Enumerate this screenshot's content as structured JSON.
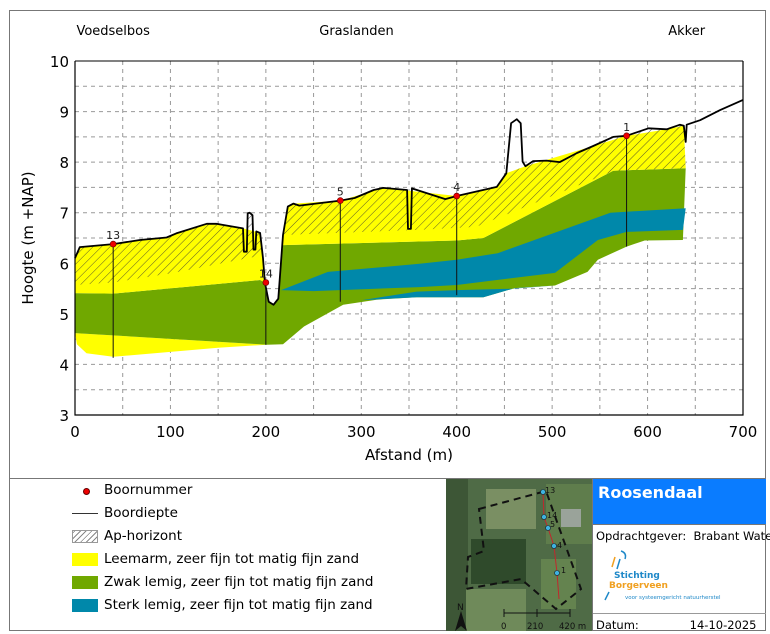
{
  "chart_data": {
    "type": "area",
    "xlabel": "Afstand (m)",
    "ylabel": "Hoogte (m +NAP)",
    "xlim": [
      0,
      700
    ],
    "ylim": [
      3,
      10
    ],
    "xticks": [
      "0",
      "100",
      "200",
      "300",
      "400",
      "500",
      "600",
      "700"
    ],
    "yticks": [
      "3",
      "4",
      "5",
      "6",
      "7",
      "8",
      "9",
      "10"
    ],
    "grid": true,
    "zones": [
      {
        "label": "Voedselbos",
        "x": 40
      },
      {
        "label": "Graslanden",
        "x": 295
      },
      {
        "label": "Akker",
        "x": 641
      }
    ],
    "surface": [
      [
        0,
        6.1
      ],
      [
        5,
        6.32
      ],
      [
        40,
        6.38
      ],
      [
        68,
        6.46
      ],
      [
        96,
        6.51
      ],
      [
        106,
        6.59
      ],
      [
        138,
        6.78
      ],
      [
        148,
        6.78
      ],
      [
        176,
        6.69
      ],
      [
        177,
        6.23
      ],
      [
        180,
        6.23
      ],
      [
        181,
        6.99
      ],
      [
        183,
        7.0
      ],
      [
        186,
        6.95
      ],
      [
        187,
        6.27
      ],
      [
        189,
        6.27
      ],
      [
        190,
        6.63
      ],
      [
        194,
        6.6
      ],
      [
        197,
        6.1
      ],
      [
        199,
        5.62
      ],
      [
        203,
        5.24
      ],
      [
        208,
        5.18
      ],
      [
        213,
        5.3
      ],
      [
        218,
        6.56
      ],
      [
        223,
        7.12
      ],
      [
        229,
        7.18
      ],
      [
        235,
        7.14
      ],
      [
        278,
        7.24
      ],
      [
        293,
        7.29
      ],
      [
        313,
        7.45
      ],
      [
        323,
        7.49
      ],
      [
        348,
        7.45
      ],
      [
        349,
        6.68
      ],
      [
        352,
        6.68
      ],
      [
        353,
        7.48
      ],
      [
        388,
        7.27
      ],
      [
        400,
        7.33
      ],
      [
        442,
        7.51
      ],
      [
        452,
        7.78
      ],
      [
        457,
        8.77
      ],
      [
        463,
        8.85
      ],
      [
        467,
        8.77
      ],
      [
        469,
        8.01
      ],
      [
        472,
        7.92
      ],
      [
        480,
        8.02
      ],
      [
        494,
        8.03
      ],
      [
        508,
        8.0
      ],
      [
        526,
        8.18
      ],
      [
        543,
        8.32
      ],
      [
        564,
        8.5
      ],
      [
        578,
        8.52
      ],
      [
        601,
        8.67
      ],
      [
        620,
        8.65
      ],
      [
        634,
        8.74
      ],
      [
        638,
        8.72
      ],
      [
        640,
        8.4
      ],
      [
        641,
        8.74
      ],
      [
        655,
        8.83
      ],
      [
        676,
        9.03
      ],
      [
        700,
        9.23
      ]
    ],
    "layers": [
      {
        "name": "Leemarm, zeer fijn tot matig fijn zand",
        "color": "#ffff00",
        "polygon": [
          [
            0,
            4.62
          ],
          [
            201,
            4.39
          ],
          [
            150,
            4.33
          ],
          [
            40,
            4.15
          ],
          [
            12,
            4.22
          ],
          [
            2,
            4.4
          ]
        ]
      },
      {
        "name": "Zwak lemig, zeer fijn tot matig fijn zand",
        "color": "#70a800",
        "polygon": [
          [
            0,
            5.41
          ],
          [
            40,
            5.4
          ],
          [
            194,
            5.67
          ],
          [
            199,
            5.62
          ],
          [
            203,
            5.24
          ],
          [
            208,
            5.18
          ],
          [
            213,
            5.3
          ],
          [
            218,
            6.36
          ],
          [
            360,
            6.43
          ],
          [
            400,
            6.45
          ],
          [
            428,
            6.5
          ],
          [
            564,
            7.83
          ],
          [
            640,
            7.88
          ],
          [
            637,
            6.46
          ],
          [
            597,
            6.45
          ],
          [
            578,
            6.33
          ],
          [
            548,
            6.07
          ],
          [
            537,
            5.83
          ],
          [
            503,
            5.56
          ],
          [
            461,
            5.51
          ],
          [
            428,
            5.33
          ],
          [
            358,
            5.33
          ],
          [
            316,
            5.28
          ],
          [
            281,
            5.18
          ],
          [
            240,
            4.75
          ],
          [
            218,
            4.4
          ],
          [
            201,
            4.39
          ],
          [
            0,
            4.62
          ]
        ]
      },
      {
        "name": "Sterk lemig, zeer fijn tot matig fijn zand",
        "color": "#0088aa",
        "polygon": [
          [
            216,
            5.47
          ],
          [
            265,
            5.83
          ],
          [
            361,
            5.99
          ],
          [
            400,
            6.07
          ],
          [
            443,
            6.2
          ],
          [
            561,
            7.0
          ],
          [
            640,
            7.09
          ],
          [
            637,
            6.66
          ],
          [
            578,
            6.62
          ],
          [
            548,
            6.46
          ],
          [
            503,
            5.81
          ],
          [
            400,
            5.57
          ],
          [
            361,
            5.53
          ],
          [
            250,
            5.45
          ]
        ]
      },
      {
        "name": "Sterk lemig, zeer fijn tot matig fijn zand",
        "color": "#0088aa",
        "polygon": [
          [
            300,
            5.27
          ],
          [
            358,
            5.44
          ],
          [
            400,
            5.47
          ],
          [
            460,
            5.5
          ],
          [
            503,
            5.56
          ],
          [
            461,
            5.51
          ],
          [
            428,
            5.33
          ],
          [
            358,
            5.33
          ]
        ]
      },
      {
        "name": "Leemarm, zeer fijn tot matig fijn zand",
        "color": "#ffff00",
        "polygon": [
          [
            0,
            6.1
          ],
          [
            5,
            6.32
          ],
          [
            40,
            6.38
          ],
          [
            68,
            6.46
          ],
          [
            96,
            6.51
          ],
          [
            106,
            6.59
          ],
          [
            138,
            6.78
          ],
          [
            148,
            6.78
          ],
          [
            176,
            6.69
          ],
          [
            194,
            6.6
          ],
          [
            197,
            6.1
          ],
          [
            199,
            5.62
          ],
          [
            194,
            5.67
          ],
          [
            40,
            5.4
          ],
          [
            0,
            5.41
          ]
        ]
      },
      {
        "name": "Leemarm, zeer fijn tot matig fijn zand",
        "color": "#ffff00",
        "polygon": [
          [
            218,
            6.56
          ],
          [
            223,
            7.12
          ],
          [
            229,
            7.18
          ],
          [
            278,
            7.24
          ],
          [
            323,
            7.49
          ],
          [
            400,
            7.33
          ],
          [
            442,
            7.51
          ],
          [
            452,
            7.78
          ],
          [
            472,
            7.92
          ],
          [
            543,
            8.32
          ],
          [
            578,
            8.52
          ],
          [
            620,
            8.65
          ],
          [
            638,
            8.72
          ],
          [
            640,
            7.88
          ],
          [
            564,
            7.83
          ],
          [
            428,
            6.5
          ],
          [
            400,
            6.45
          ],
          [
            360,
            6.43
          ],
          [
            218,
            6.36
          ]
        ]
      }
    ],
    "ap_horizon": [
      [
        [
          0,
          6.1
        ],
        [
          5,
          6.32
        ],
        [
          40,
          6.38
        ],
        [
          68,
          6.46
        ],
        [
          96,
          6.51
        ],
        [
          106,
          6.59
        ],
        [
          138,
          6.78
        ],
        [
          148,
          6.78
        ],
        [
          176,
          6.69
        ],
        [
          177,
          6.23
        ],
        [
          180,
          6.23
        ],
        [
          181,
          6.99
        ],
        [
          183,
          7.0
        ],
        [
          186,
          6.95
        ],
        [
          187,
          6.27
        ],
        [
          189,
          6.27
        ],
        [
          190,
          6.63
        ],
        [
          194,
          6.6
        ],
        [
          197,
          6.16
        ],
        [
          100,
          5.8
        ],
        [
          40,
          5.62
        ],
        [
          0,
          5.57
        ]
      ],
      [
        [
          218,
          6.56
        ],
        [
          223,
          7.12
        ],
        [
          229,
          7.18
        ],
        [
          235,
          7.14
        ],
        [
          278,
          7.24
        ],
        [
          293,
          7.29
        ],
        [
          313,
          7.45
        ],
        [
          323,
          7.49
        ],
        [
          348,
          7.45
        ],
        [
          349,
          6.68
        ],
        [
          352,
          6.68
        ],
        [
          353,
          7.48
        ],
        [
          388,
          7.27
        ],
        [
          400,
          7.33
        ],
        [
          442,
          7.51
        ],
        [
          452,
          7.78
        ],
        [
          472,
          7.92
        ],
        [
          480,
          8.02
        ],
        [
          494,
          8.03
        ],
        [
          508,
          8.0
        ],
        [
          526,
          8.18
        ],
        [
          543,
          8.32
        ],
        [
          564,
          8.5
        ],
        [
          578,
          8.52
        ],
        [
          601,
          8.67
        ],
        [
          620,
          8.65
        ],
        [
          634,
          8.74
        ],
        [
          638,
          8.72
        ],
        [
          640,
          7.88
        ],
        [
          565,
          7.83
        ],
        [
          420,
          6.72
        ],
        [
          360,
          6.66
        ]
      ]
    ],
    "boreholes": [
      {
        "id": "13",
        "x": 40,
        "top": 6.38,
        "bottom": 4.13
      },
      {
        "id": "14",
        "x": 200,
        "top": 5.62,
        "bottom": 4.39
      },
      {
        "id": "5",
        "x": 278,
        "top": 7.24,
        "bottom": 5.24
      },
      {
        "id": "4",
        "x": 400,
        "top": 7.33,
        "bottom": 5.37
      },
      {
        "id": "1",
        "x": 578,
        "top": 8.52,
        "bottom": 6.33
      }
    ]
  },
  "legend": {
    "items": [
      {
        "label": "Boornummer",
        "symbol": "red-dot"
      },
      {
        "label": "Boordiepte",
        "symbol": "line"
      },
      {
        "label": "Ap-horizont",
        "symbol": "hatch"
      },
      {
        "label": "Leemarm, zeer fijn tot matig fijn zand",
        "symbol": "fill",
        "color": "#ffff00"
      },
      {
        "label": "Zwak lemig, zeer fijn tot matig fijn zand",
        "symbol": "fill",
        "color": "#70a800"
      },
      {
        "label": "Sterk lemig, zeer fijn tot matig fijn zand",
        "symbol": "fill",
        "color": "#0088aa"
      }
    ]
  },
  "map": {
    "points": [
      "13",
      "14",
      "5",
      "4",
      "1"
    ],
    "scale": [
      "0",
      "210",
      "420 m"
    ],
    "north": "N"
  },
  "info": {
    "title": "Roosendaal",
    "title_color": "#0a7cff",
    "client_label": "Opdrachtgever:",
    "client": "Brabant Water",
    "logo_top": "Stichting",
    "logo_name": "Borgerveen",
    "logo_tagline": "voor systeemgericht natuurherstel",
    "date_label": "Datum:",
    "date": "14-10-2025"
  }
}
